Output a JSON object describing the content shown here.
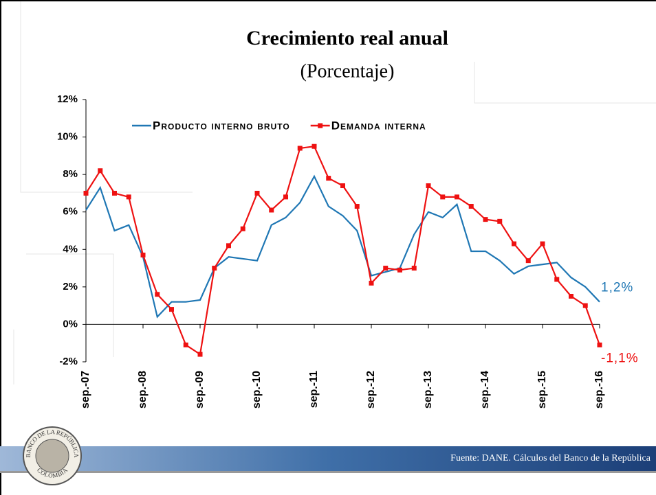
{
  "chart_data": {
    "type": "line",
    "title": "Crecimiento real anual",
    "subtitle": "(Porcentaje)",
    "source": "Fuente: DANE. Cálculos del Banco de la República",
    "logo_text": [
      "BANCO DE LA REPÚBLICA",
      "COLOMBIA"
    ],
    "categories": [
      "sep.-07",
      null,
      null,
      null,
      "sep.-08",
      null,
      null,
      null,
      "sep.-09",
      null,
      null,
      null,
      "sep.-10",
      null,
      null,
      null,
      "sep.-11",
      null,
      null,
      null,
      "sep.-12",
      null,
      null,
      null,
      "sep.-13",
      null,
      null,
      null,
      "sep.-14",
      null,
      null,
      null,
      "sep.-15",
      null,
      null,
      null,
      "sep.-16"
    ],
    "ylim": [
      -2,
      12
    ],
    "yticks": [
      {
        "value": -2,
        "label": "-2%"
      },
      {
        "value": 0,
        "label": "0%"
      },
      {
        "value": 2,
        "label": "2%"
      },
      {
        "value": 4,
        "label": "4%"
      },
      {
        "value": 6,
        "label": "6%"
      },
      {
        "value": 8,
        "label": "8%"
      },
      {
        "value": 10,
        "label": "10%"
      },
      {
        "value": 12,
        "label": "12%"
      }
    ],
    "legend": "top",
    "series": [
      {
        "name": "Producto interno bruto",
        "color": "#1f77b4",
        "marker": "none",
        "values": [
          6.1,
          7.3,
          5.0,
          5.3,
          3.6,
          0.4,
          1.2,
          1.2,
          1.3,
          3.0,
          3.6,
          3.5,
          3.4,
          5.3,
          5.7,
          6.5,
          7.9,
          6.3,
          5.8,
          5.0,
          2.6,
          2.8,
          3.0,
          4.8,
          6.0,
          5.7,
          6.4,
          3.9,
          3.9,
          3.4,
          2.7,
          3.1,
          3.2,
          3.3,
          2.5,
          2.0,
          1.2
        ],
        "value_labels": [
          null,
          null,
          null,
          null,
          null,
          null,
          null,
          null,
          null,
          null,
          null,
          null,
          null,
          null,
          null,
          null,
          null,
          null,
          null,
          null,
          null,
          null,
          null,
          null,
          null,
          null,
          null,
          null,
          null,
          null,
          null,
          null,
          null,
          null,
          null,
          null,
          "1,2%"
        ]
      },
      {
        "name": "Demanda interna",
        "color": "#ee1111",
        "marker": "square",
        "values": [
          7.0,
          8.2,
          7.0,
          6.8,
          3.7,
          1.6,
          0.8,
          -1.1,
          -1.6,
          3.0,
          4.2,
          5.1,
          7.0,
          6.1,
          6.8,
          9.4,
          9.5,
          7.8,
          7.4,
          6.3,
          2.2,
          3.0,
          2.9,
          3.0,
          7.4,
          6.8,
          6.8,
          6.3,
          5.6,
          5.5,
          4.3,
          3.4,
          4.3,
          2.4,
          1.5,
          1.0,
          -1.1
        ],
        "value_labels": [
          null,
          null,
          null,
          null,
          null,
          null,
          null,
          null,
          null,
          null,
          null,
          null,
          null,
          null,
          null,
          null,
          null,
          null,
          null,
          null,
          null,
          null,
          null,
          null,
          null,
          null,
          null,
          null,
          null,
          null,
          null,
          null,
          null,
          null,
          null,
          null,
          "-1,1%"
        ]
      }
    ]
  }
}
